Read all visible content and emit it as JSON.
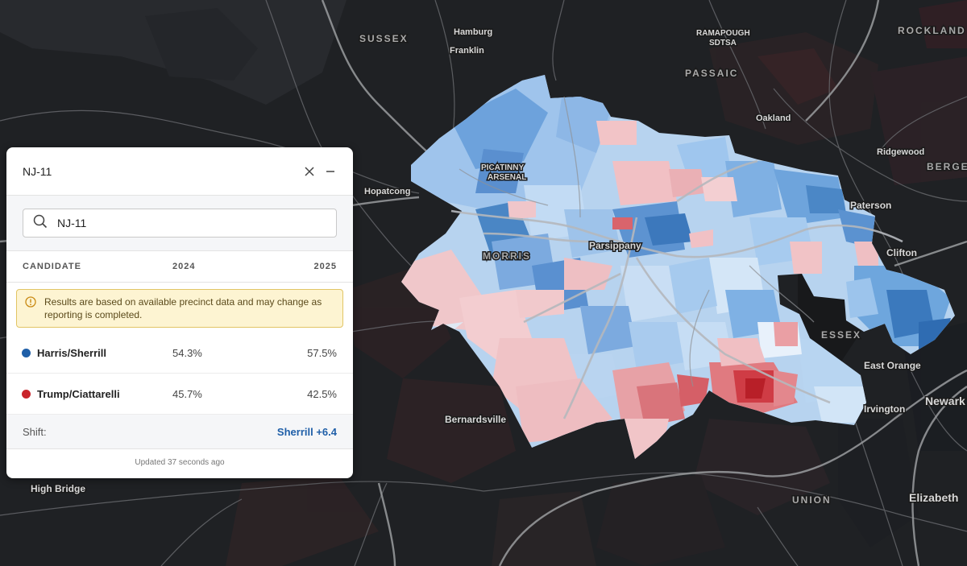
{
  "panel": {
    "title": "NJ-11",
    "search_value": "NJ-11",
    "columns": {
      "candidate": "CANDIDATE",
      "y2024": "2024",
      "y2025": "2025"
    },
    "notice": "Results are based on available precinct data and may change as reporting is completed.",
    "candidates": [
      {
        "name": "Harris/Sherrill",
        "v2024": "54.3%",
        "v2025": "57.5%",
        "color": "#1f5fa8"
      },
      {
        "name": "Trump/Ciattarelli",
        "v2024": "45.7%",
        "v2025": "42.5%",
        "color": "#c9242b"
      }
    ],
    "shift_label": "Shift:",
    "shift_value": "Sherrill +6.4",
    "updated": "Updated 37 seconds ago",
    "icons": {
      "close": "close-icon",
      "minimize": "minimize-icon",
      "search": "search-icon",
      "warning": "warning-icon"
    }
  },
  "map": {
    "places": {
      "sussex": "SUSSEX",
      "hamburg": "Hamburg",
      "franklin": "Franklin",
      "ramapough_1": "RAMAPOUGH",
      "ramapough_2": "SDTSA",
      "rockland": "ROCKLAND",
      "passaic": "PASSAIC",
      "oakland": "Oakland",
      "ridgewood": "Ridgewood",
      "bergen": "BERGEN",
      "picatinny_1": "PICATINNY",
      "picatinny_2": "ARSENAL",
      "hopatcong": "Hopatcong",
      "paterson": "Paterson",
      "parsippany": "Parsippany",
      "morris": "MORRIS",
      "clifton": "Clifton",
      "essex": "ESSEX",
      "east_orange": "East Orange",
      "irvington": "Irvington",
      "newark": "Newark",
      "bernardsville": "Bernardsville",
      "high_bridge": "High Bridge",
      "union": "UNION",
      "elizabeth": "Elizabeth"
    },
    "colors": {
      "dem_light": "#c7def4",
      "dem": "#8fbbe6",
      "dem_dark": "#4a86c5",
      "rep_light": "#f2c6c9",
      "rep": "#e38f95",
      "rep_dark": "#c9242b",
      "background": "#1f2124"
    }
  }
}
